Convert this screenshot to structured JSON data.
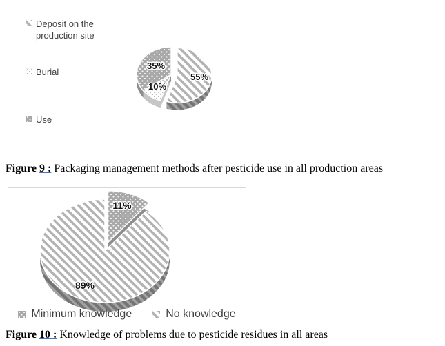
{
  "figure9": {
    "caption_label": "Figure",
    "caption_number": "9 :",
    "caption_text": "Packaging management methods after pesticide use in all production areas"
  },
  "figure10": {
    "caption_label": "Figure",
    "caption_number": "10 :",
    "caption_text": "Knowledge of problems due to pesticide residues in all areas"
  },
  "chart_data": [
    {
      "type": "pie",
      "style": "3d-exploded",
      "title": "Packaging management methods after pesticide use in all production areas",
      "labels": [
        "Deposit on the production site",
        "Burial",
        "Use"
      ],
      "values": [
        55,
        10,
        35
      ],
      "data_labels": [
        "55%",
        "10%",
        "35%"
      ],
      "patterns": [
        "diagonal-stripes",
        "white-dots",
        "gray-dots"
      ],
      "legend_position": "left",
      "exploded_slice": "Deposit on the production site"
    },
    {
      "type": "pie",
      "style": "3d-exploded",
      "title": "Knowledge of problems due to pesticide residues in all areas",
      "labels": [
        "Minimum knowledge",
        "No knowledge"
      ],
      "values": [
        11,
        89
      ],
      "data_labels": [
        "11%",
        "89%"
      ],
      "patterns": [
        "gray-dots",
        "diagonal-stripes"
      ],
      "legend_position": "bottom",
      "exploded_slice": "Minimum knowledge"
    }
  ],
  "colors": {
    "stripe_gray": "#b2b2b2",
    "dot_slice_gray": "#a8a8a8",
    "rim_gray": "#8e8e8e",
    "frame1_border": "#e7e4d0",
    "frame2_border": "#d9d9d9",
    "caption_underline": "#4a72c4",
    "legend_text": "#404040"
  }
}
